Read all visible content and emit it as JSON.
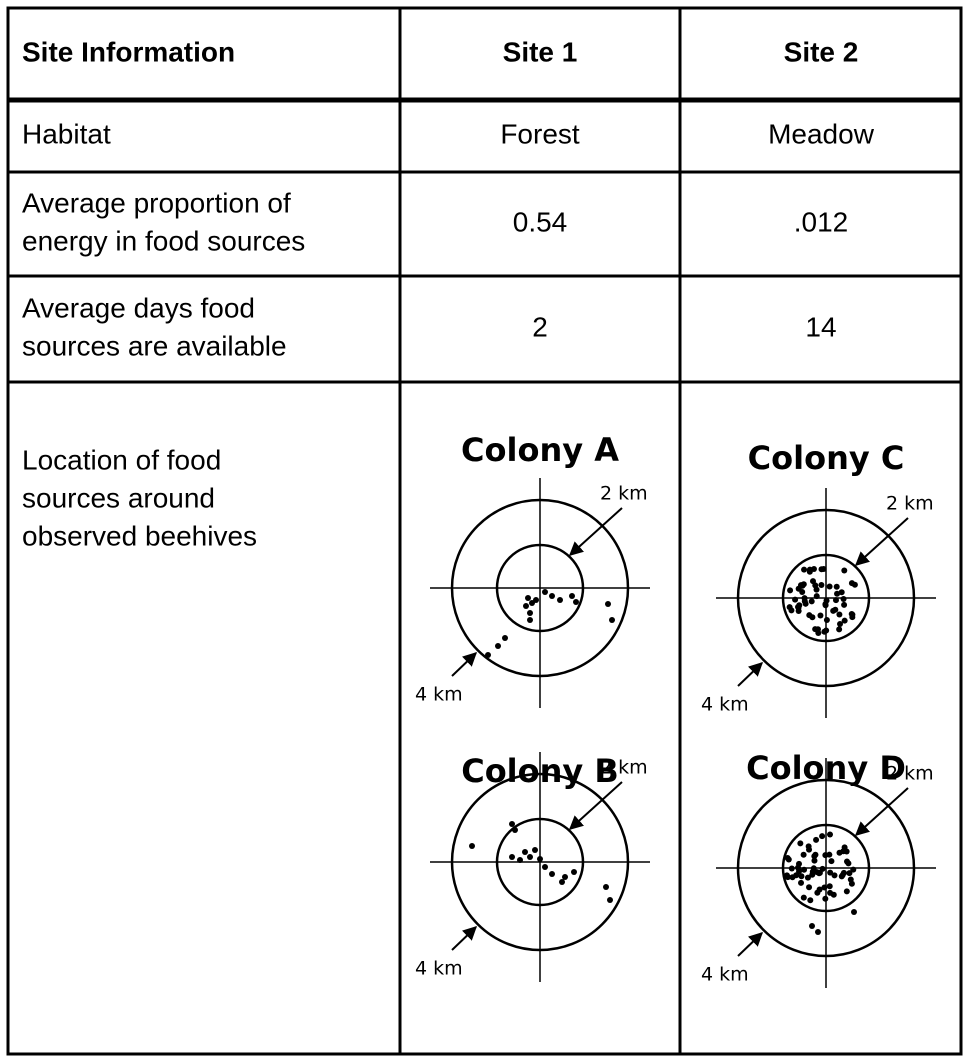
{
  "table": {
    "header": [
      "Site Information",
      "Site 1",
      "Site 2"
    ],
    "rows": [
      {
        "label": [
          "Habitat"
        ],
        "cells": [
          "Forest",
          "Meadow"
        ]
      },
      {
        "label": [
          "Average proportion of",
          "energy in food sources"
        ],
        "cells": [
          "0.54",
          ".012"
        ]
      },
      {
        "label": [
          "Average days food",
          "sources are available"
        ],
        "cells": [
          "2",
          "14"
        ]
      },
      {
        "label": [
          "Location of food",
          "sources around",
          "observed beehives"
        ]
      }
    ],
    "colonies": [
      {
        "name": "Colony A",
        "inner_label": "2 km",
        "outer_label": "4 km"
      },
      {
        "name": "Colony B",
        "inner_label": "2 km",
        "outer_label": "4 km"
      },
      {
        "name": "Colony C",
        "inner_label": "2 km",
        "outer_label": "4 km"
      },
      {
        "name": "Colony D",
        "inner_label": "2 km",
        "outer_label": "4 km"
      }
    ]
  }
}
